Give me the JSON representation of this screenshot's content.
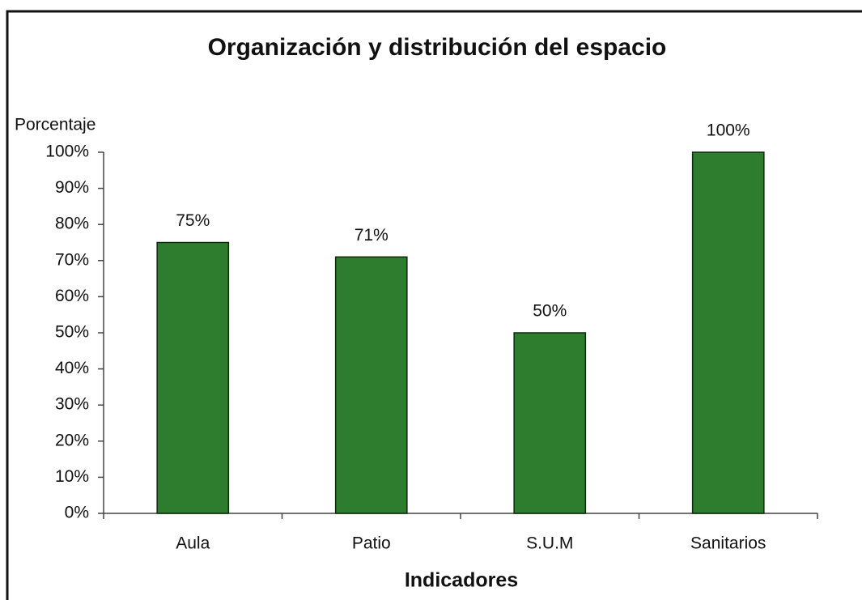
{
  "chart_data": {
    "type": "bar",
    "title": "Organización y distribución del espacio",
    "y_label": "Porcentaje",
    "x_label": "Indicadores",
    "categories": [
      "Aula",
      "Patio",
      "S.U.M",
      "Sanitarios"
    ],
    "values": [
      75,
      71,
      50,
      100
    ],
    "value_labels": [
      "75%",
      "71%",
      "50%",
      "100%"
    ],
    "color": "#2e7d2e",
    "ylim": [
      0,
      100
    ],
    "yticks": [
      {
        "value": 0,
        "label": "0%"
      },
      {
        "value": 10,
        "label": "10%"
      },
      {
        "value": 20,
        "label": "20%"
      },
      {
        "value": 30,
        "label": "30%"
      },
      {
        "value": 40,
        "label": "40%"
      },
      {
        "value": 50,
        "label": "50%"
      },
      {
        "value": 60,
        "label": "60%"
      },
      {
        "value": 70,
        "label": "70%"
      },
      {
        "value": 80,
        "label": "80%"
      },
      {
        "value": 90,
        "label": "90%"
      },
      {
        "value": 100,
        "label": "100%"
      }
    ],
    "grid": false
  }
}
